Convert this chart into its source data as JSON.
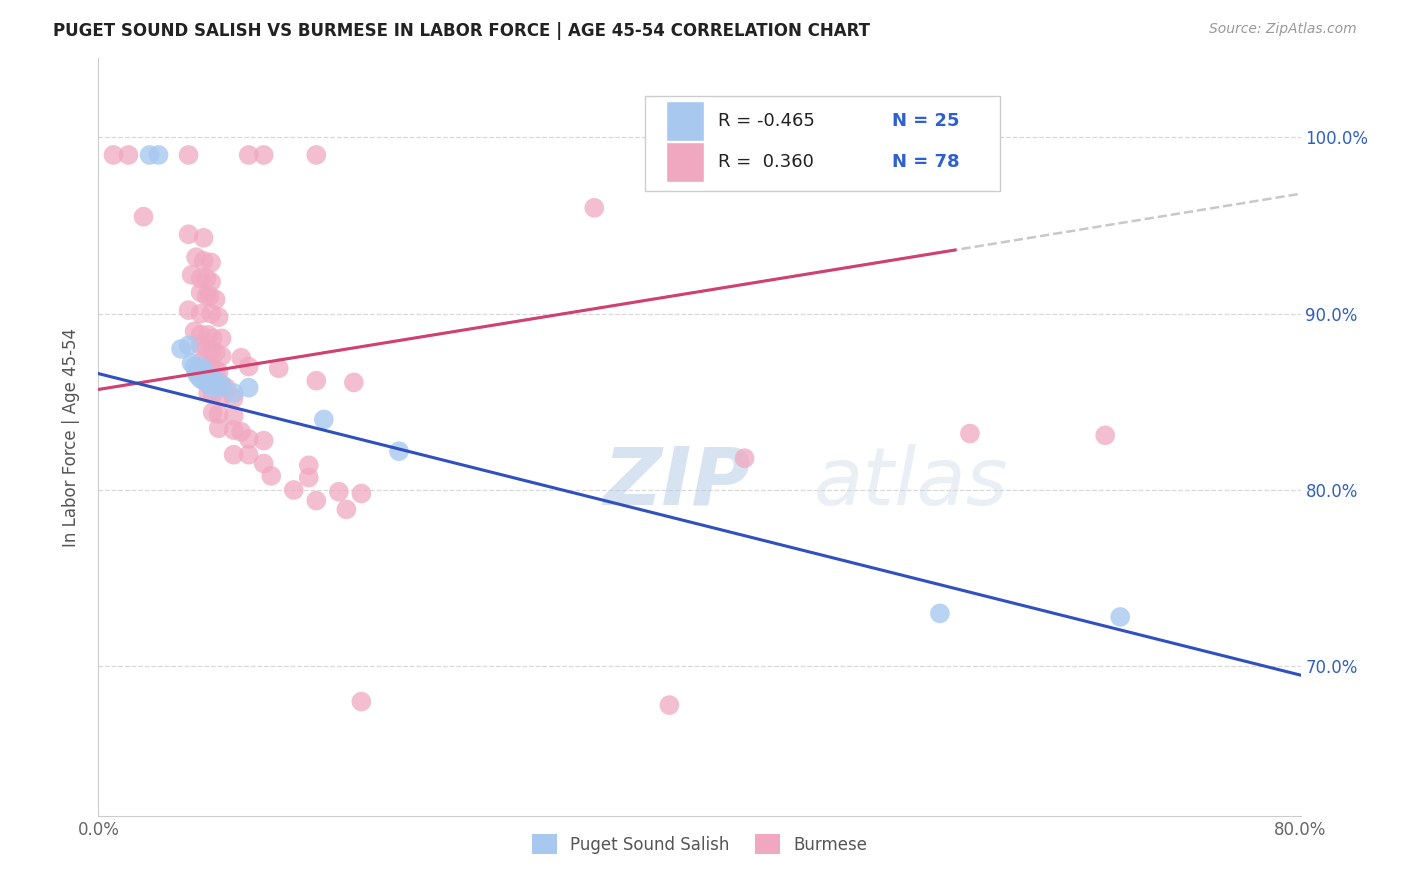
{
  "title": "PUGET SOUND SALISH VS BURMESE IN LABOR FORCE | AGE 45-54 CORRELATION CHART",
  "source": "Source: ZipAtlas.com",
  "ylabel": "In Labor Force | Age 45-54",
  "watermark_zip": "ZIP",
  "watermark_atlas": "atlas",
  "legend_r1": "R = -0.465",
  "legend_n1": "N = 25",
  "legend_r2": "R =  0.360",
  "legend_n2": "N = 78",
  "color_salish": "#a8c8f0",
  "color_burmese": "#f0a8c0",
  "color_line_salish": "#3050c0",
  "color_line_burmese": "#d04070",
  "color_trend_ext": "#c8c8c8",
  "xlim": [
    0.0,
    0.8
  ],
  "ylim": [
    0.615,
    1.045
  ],
  "ytick_vals": [
    0.7,
    0.8,
    0.9,
    1.0
  ],
  "ytick_labels": [
    "70.0%",
    "80.0%",
    "90.0%",
    "100.0%"
  ],
  "xtick_vals": [
    0.0,
    0.1,
    0.2,
    0.3,
    0.4,
    0.5,
    0.6,
    0.7,
    0.8
  ],
  "xtick_labels": [
    "0.0%",
    "",
    "",
    "",
    "",
    "",
    "",
    "",
    "80.0%"
  ],
  "salish_points": [
    [
      0.034,
      0.99
    ],
    [
      0.04,
      0.99
    ],
    [
      0.055,
      0.88
    ],
    [
      0.06,
      0.882
    ],
    [
      0.062,
      0.872
    ],
    [
      0.064,
      0.87
    ],
    [
      0.065,
      0.867
    ],
    [
      0.066,
      0.865
    ],
    [
      0.068,
      0.87
    ],
    [
      0.068,
      0.863
    ],
    [
      0.07,
      0.868
    ],
    [
      0.07,
      0.862
    ],
    [
      0.072,
      0.865
    ],
    [
      0.073,
      0.86
    ],
    [
      0.075,
      0.863
    ],
    [
      0.076,
      0.858
    ],
    [
      0.078,
      0.862
    ],
    [
      0.08,
      0.858
    ],
    [
      0.082,
      0.86
    ],
    [
      0.09,
      0.855
    ],
    [
      0.1,
      0.858
    ],
    [
      0.15,
      0.84
    ],
    [
      0.2,
      0.822
    ],
    [
      0.56,
      0.73
    ],
    [
      0.68,
      0.728
    ]
  ],
  "burmese_points": [
    [
      0.01,
      0.99
    ],
    [
      0.02,
      0.99
    ],
    [
      0.06,
      0.99
    ],
    [
      0.1,
      0.99
    ],
    [
      0.11,
      0.99
    ],
    [
      0.145,
      0.99
    ],
    [
      0.03,
      0.955
    ],
    [
      0.06,
      0.945
    ],
    [
      0.07,
      0.943
    ],
    [
      0.065,
      0.932
    ],
    [
      0.07,
      0.93
    ],
    [
      0.075,
      0.929
    ],
    [
      0.062,
      0.922
    ],
    [
      0.068,
      0.92
    ],
    [
      0.072,
      0.92
    ],
    [
      0.075,
      0.918
    ],
    [
      0.068,
      0.912
    ],
    [
      0.072,
      0.91
    ],
    [
      0.074,
      0.91
    ],
    [
      0.078,
      0.908
    ],
    [
      0.06,
      0.902
    ],
    [
      0.068,
      0.9
    ],
    [
      0.075,
      0.9
    ],
    [
      0.08,
      0.898
    ],
    [
      0.064,
      0.89
    ],
    [
      0.068,
      0.888
    ],
    [
      0.073,
      0.888
    ],
    [
      0.076,
      0.886
    ],
    [
      0.082,
      0.886
    ],
    [
      0.068,
      0.882
    ],
    [
      0.072,
      0.88
    ],
    [
      0.075,
      0.879
    ],
    [
      0.078,
      0.878
    ],
    [
      0.082,
      0.876
    ],
    [
      0.095,
      0.875
    ],
    [
      0.068,
      0.872
    ],
    [
      0.072,
      0.87
    ],
    [
      0.075,
      0.87
    ],
    [
      0.078,
      0.868
    ],
    [
      0.08,
      0.867
    ],
    [
      0.072,
      0.862
    ],
    [
      0.075,
      0.861
    ],
    [
      0.078,
      0.86
    ],
    [
      0.082,
      0.859
    ],
    [
      0.085,
      0.858
    ],
    [
      0.073,
      0.855
    ],
    [
      0.076,
      0.854
    ],
    [
      0.082,
      0.853
    ],
    [
      0.09,
      0.852
    ],
    [
      0.076,
      0.844
    ],
    [
      0.08,
      0.843
    ],
    [
      0.09,
      0.842
    ],
    [
      0.08,
      0.835
    ],
    [
      0.09,
      0.834
    ],
    [
      0.095,
      0.833
    ],
    [
      0.1,
      0.829
    ],
    [
      0.11,
      0.828
    ],
    [
      0.09,
      0.82
    ],
    [
      0.1,
      0.82
    ],
    [
      0.11,
      0.815
    ],
    [
      0.14,
      0.814
    ],
    [
      0.115,
      0.808
    ],
    [
      0.14,
      0.807
    ],
    [
      0.13,
      0.8
    ],
    [
      0.16,
      0.799
    ],
    [
      0.175,
      0.798
    ],
    [
      0.43,
      0.818
    ],
    [
      0.145,
      0.794
    ],
    [
      0.165,
      0.789
    ],
    [
      0.33,
      0.96
    ],
    [
      0.175,
      0.68
    ],
    [
      0.38,
      0.678
    ],
    [
      0.58,
      0.832
    ],
    [
      0.67,
      0.831
    ],
    [
      0.1,
      0.87
    ],
    [
      0.12,
      0.869
    ],
    [
      0.145,
      0.862
    ],
    [
      0.17,
      0.861
    ]
  ],
  "burmese_line_solid_xlim": [
    0.0,
    0.58
  ],
  "burmese_line_dash_xlim": [
    0.58,
    0.8
  ]
}
